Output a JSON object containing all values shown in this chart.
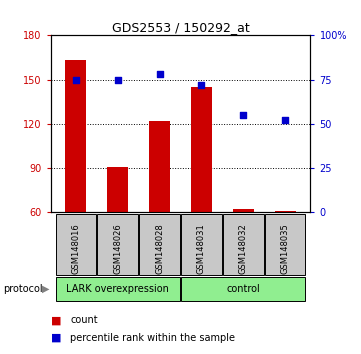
{
  "title": "GDS2553 / 150292_at",
  "samples": [
    "GSM148016",
    "GSM148026",
    "GSM148028",
    "GSM148031",
    "GSM148032",
    "GSM148035"
  ],
  "bar_values": [
    163,
    91,
    122,
    145,
    62,
    61
  ],
  "percentile_values": [
    75,
    75,
    78,
    72,
    55,
    52
  ],
  "ylim_left": [
    60,
    180
  ],
  "ylim_right": [
    0,
    100
  ],
  "yticks_left": [
    60,
    90,
    120,
    150,
    180
  ],
  "yticks_right": [
    0,
    25,
    50,
    75,
    100
  ],
  "yticklabels_right": [
    "0",
    "25",
    "50",
    "75",
    "100%"
  ],
  "bar_color": "#cc0000",
  "marker_color": "#0000cc",
  "bar_width": 0.5,
  "group_lark": [
    0,
    1,
    2
  ],
  "group_control": [
    3,
    4,
    5
  ],
  "group_lark_label": "LARK overexpression",
  "group_control_label": "control",
  "group_color": "#90ee90",
  "sample_box_color": "#c8c8c8",
  "protocol_label": "protocol",
  "legend_count_label": "count",
  "legend_pct_label": "percentile rank within the sample",
  "tick_color_left": "#cc0000",
  "tick_color_right": "#0000cc",
  "title_fontsize": 9,
  "tick_fontsize": 7,
  "sample_fontsize": 6,
  "group_fontsize": 7,
  "legend_fontsize": 7,
  "protocol_fontsize": 7
}
